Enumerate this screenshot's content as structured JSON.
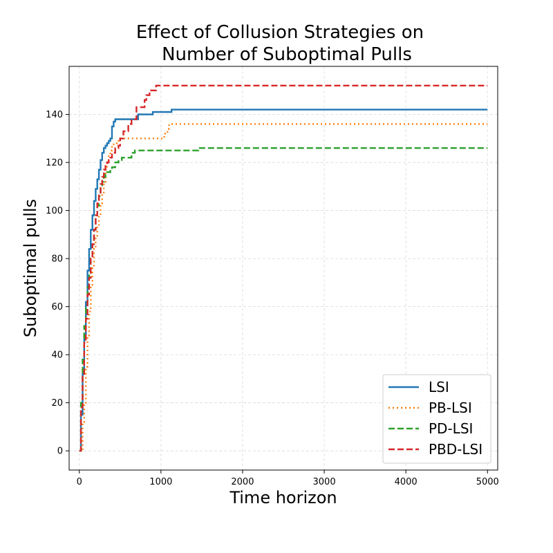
{
  "chart_data": {
    "type": "line",
    "title_line1": "Effect of Collusion Strategies on",
    "title_line2": "Number of Suboptimal Pulls",
    "xlabel": "Time horizon",
    "ylabel": "Suboptimal pulls",
    "xlim": [
      -125,
      5125
    ],
    "ylim": [
      -8,
      160
    ],
    "xticks": [
      0,
      1000,
      2000,
      3000,
      4000,
      5000
    ],
    "yticks": [
      0,
      20,
      40,
      60,
      80,
      100,
      120,
      140
    ],
    "grid": true,
    "legend_position": "lower-right",
    "series": [
      {
        "name": "LSI",
        "color": "#1f77b4",
        "dash": "solid",
        "x": [
          0,
          20,
          40,
          60,
          80,
          100,
          120,
          140,
          160,
          180,
          200,
          220,
          240,
          260,
          280,
          300,
          320,
          340,
          360,
          380,
          400,
          420,
          440,
          460,
          720,
          720,
          900,
          900,
          1130,
          1130,
          5000
        ],
        "y": [
          0,
          15,
          32,
          48,
          62,
          75,
          84,
          92,
          98,
          104,
          109,
          113,
          117,
          121,
          124,
          126,
          127,
          128,
          129,
          130,
          135,
          137,
          138,
          138,
          138,
          140,
          140,
          141,
          141,
          142,
          142
        ]
      },
      {
        "name": "PB-LSI",
        "color": "#ff7f0e",
        "dash": "dotted",
        "x": [
          0,
          40,
          60,
          80,
          100,
          120,
          140,
          160,
          180,
          200,
          220,
          240,
          260,
          280,
          300,
          320,
          340,
          360,
          380,
          400,
          420,
          460,
          500,
          560,
          600,
          1000,
          1040,
          1080,
          1100,
          5000
        ],
        "y": [
          0,
          12,
          20,
          35,
          48,
          58,
          68,
          76,
          84,
          89,
          93,
          98,
          103,
          107,
          112,
          117,
          120,
          123,
          125,
          127,
          128,
          129,
          130,
          130,
          130,
          130,
          132,
          134,
          136,
          136
        ]
      },
      {
        "name": "PD-LSI",
        "color": "#2ca02c",
        "dash": "dashed",
        "x": [
          0,
          20,
          40,
          60,
          80,
          100,
          120,
          140,
          160,
          180,
          200,
          220,
          240,
          260,
          280,
          300,
          320,
          340,
          360,
          380,
          400,
          440,
          480,
          520,
          600,
          640,
          680,
          1440,
          1460,
          5000
        ],
        "y": [
          0,
          20,
          38,
          52,
          60,
          68,
          74,
          80,
          86,
          92,
          98,
          102,
          106,
          110,
          112,
          114,
          115,
          116,
          116,
          117,
          118,
          120,
          121,
          122,
          122,
          124,
          125,
          125,
          126,
          126
        ]
      },
      {
        "name": "PBD-LSI",
        "color": "#d62728",
        "dash": "dashed",
        "x": [
          0,
          20,
          40,
          60,
          80,
          100,
          120,
          140,
          160,
          180,
          200,
          220,
          240,
          260,
          280,
          300,
          320,
          340,
          360,
          380,
          400,
          440,
          480,
          500,
          540,
          600,
          640,
          700,
          780,
          800,
          820,
          860,
          900,
          940,
          5000
        ],
        "y": [
          0,
          18,
          32,
          45,
          55,
          65,
          72,
          80,
          86,
          92,
          98,
          103,
          107,
          111,
          114,
          117,
          119,
          120,
          121,
          122,
          124,
          126,
          127,
          130,
          133,
          136,
          138,
          143,
          143,
          146,
          148,
          150,
          150,
          152,
          152
        ]
      }
    ]
  }
}
